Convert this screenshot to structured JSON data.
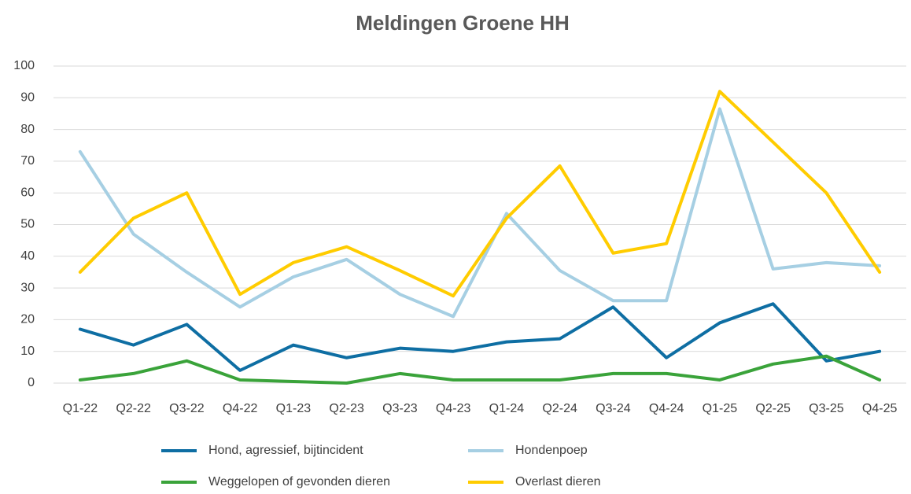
{
  "chart_data": {
    "type": "line",
    "title": "Meldingen Groene HH",
    "categories": [
      "Q1-22",
      "Q2-22",
      "Q3-22",
      "Q4-22",
      "Q1-23",
      "Q2-23",
      "Q3-23",
      "Q4-23",
      "Q1-24",
      "Q2-24",
      "Q3-24",
      "Q4-24",
      "Q1-25",
      "Q2-25",
      "Q3-25",
      "Q4-25"
    ],
    "series": [
      {
        "name": "Hond, agressief, bijtincident",
        "color": "#0e6ea3",
        "values": [
          17,
          12,
          18.5,
          4,
          12,
          8,
          11,
          10,
          13,
          14,
          24,
          8,
          19,
          25,
          7,
          10
        ]
      },
      {
        "name": "Hondenpoep",
        "color": "#a6cfe3",
        "values": [
          73,
          47,
          35,
          24,
          33.5,
          39,
          28,
          21,
          53.5,
          35.5,
          26,
          26,
          86.5,
          36,
          38,
          37
        ]
      },
      {
        "name": "Weggelopen of gevonden dieren",
        "color": "#3aa33a",
        "values": [
          1,
          3,
          7,
          1,
          0.5,
          0,
          3,
          1,
          1,
          1,
          3,
          3,
          1,
          6,
          8.5,
          1
        ]
      },
      {
        "name": "Overlast dieren",
        "color": "#ffcc00",
        "values": [
          35,
          52,
          60,
          28,
          38,
          43,
          35.5,
          27.5,
          52,
          68.5,
          41,
          44,
          92,
          76,
          60,
          35
        ]
      }
    ],
    "ylim": [
      0,
      100
    ],
    "yticks": [
      0,
      10,
      20,
      30,
      40,
      50,
      60,
      70,
      80,
      90,
      100
    ],
    "grid": true
  }
}
